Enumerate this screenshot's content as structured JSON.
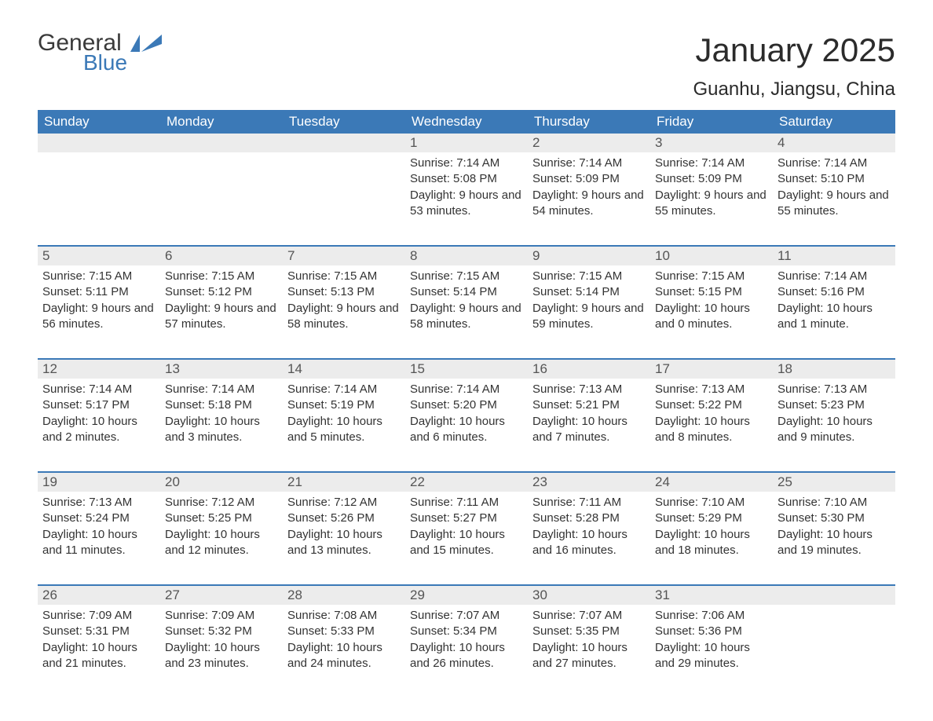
{
  "logo": {
    "word1": "General",
    "word2": "Blue",
    "icon_color": "#3b79b7",
    "text_color": "#3a3a3a"
  },
  "title": "January 2025",
  "subtitle": "Guanhu, Jiangsu, China",
  "colors": {
    "header_bg": "#3b79b7",
    "header_text": "#ffffff",
    "datebar_bg": "#ececec",
    "datebar_text": "#555555",
    "body_text": "#333333",
    "rule": "#3b79b7",
    "page_bg": "#ffffff"
  },
  "typography": {
    "title_fontsize": 42,
    "subtitle_fontsize": 24,
    "dayhead_fontsize": 17,
    "date_fontsize": 17,
    "body_fontsize": 15
  },
  "day_names": [
    "Sunday",
    "Monday",
    "Tuesday",
    "Wednesday",
    "Thursday",
    "Friday",
    "Saturday"
  ],
  "weeks": [
    [
      null,
      null,
      null,
      {
        "d": "1",
        "sr": "Sunrise: 7:14 AM",
        "ss": "Sunset: 5:08 PM",
        "dl": "Daylight: 9 hours and 53 minutes."
      },
      {
        "d": "2",
        "sr": "Sunrise: 7:14 AM",
        "ss": "Sunset: 5:09 PM",
        "dl": "Daylight: 9 hours and 54 minutes."
      },
      {
        "d": "3",
        "sr": "Sunrise: 7:14 AM",
        "ss": "Sunset: 5:09 PM",
        "dl": "Daylight: 9 hours and 55 minutes."
      },
      {
        "d": "4",
        "sr": "Sunrise: 7:14 AM",
        "ss": "Sunset: 5:10 PM",
        "dl": "Daylight: 9 hours and 55 minutes."
      }
    ],
    [
      {
        "d": "5",
        "sr": "Sunrise: 7:15 AM",
        "ss": "Sunset: 5:11 PM",
        "dl": "Daylight: 9 hours and 56 minutes."
      },
      {
        "d": "6",
        "sr": "Sunrise: 7:15 AM",
        "ss": "Sunset: 5:12 PM",
        "dl": "Daylight: 9 hours and 57 minutes."
      },
      {
        "d": "7",
        "sr": "Sunrise: 7:15 AM",
        "ss": "Sunset: 5:13 PM",
        "dl": "Daylight: 9 hours and 58 minutes."
      },
      {
        "d": "8",
        "sr": "Sunrise: 7:15 AM",
        "ss": "Sunset: 5:14 PM",
        "dl": "Daylight: 9 hours and 58 minutes."
      },
      {
        "d": "9",
        "sr": "Sunrise: 7:15 AM",
        "ss": "Sunset: 5:14 PM",
        "dl": "Daylight: 9 hours and 59 minutes."
      },
      {
        "d": "10",
        "sr": "Sunrise: 7:15 AM",
        "ss": "Sunset: 5:15 PM",
        "dl": "Daylight: 10 hours and 0 minutes."
      },
      {
        "d": "11",
        "sr": "Sunrise: 7:14 AM",
        "ss": "Sunset: 5:16 PM",
        "dl": "Daylight: 10 hours and 1 minute."
      }
    ],
    [
      {
        "d": "12",
        "sr": "Sunrise: 7:14 AM",
        "ss": "Sunset: 5:17 PM",
        "dl": "Daylight: 10 hours and 2 minutes."
      },
      {
        "d": "13",
        "sr": "Sunrise: 7:14 AM",
        "ss": "Sunset: 5:18 PM",
        "dl": "Daylight: 10 hours and 3 minutes."
      },
      {
        "d": "14",
        "sr": "Sunrise: 7:14 AM",
        "ss": "Sunset: 5:19 PM",
        "dl": "Daylight: 10 hours and 5 minutes."
      },
      {
        "d": "15",
        "sr": "Sunrise: 7:14 AM",
        "ss": "Sunset: 5:20 PM",
        "dl": "Daylight: 10 hours and 6 minutes."
      },
      {
        "d": "16",
        "sr": "Sunrise: 7:13 AM",
        "ss": "Sunset: 5:21 PM",
        "dl": "Daylight: 10 hours and 7 minutes."
      },
      {
        "d": "17",
        "sr": "Sunrise: 7:13 AM",
        "ss": "Sunset: 5:22 PM",
        "dl": "Daylight: 10 hours and 8 minutes."
      },
      {
        "d": "18",
        "sr": "Sunrise: 7:13 AM",
        "ss": "Sunset: 5:23 PM",
        "dl": "Daylight: 10 hours and 9 minutes."
      }
    ],
    [
      {
        "d": "19",
        "sr": "Sunrise: 7:13 AM",
        "ss": "Sunset: 5:24 PM",
        "dl": "Daylight: 10 hours and 11 minutes."
      },
      {
        "d": "20",
        "sr": "Sunrise: 7:12 AM",
        "ss": "Sunset: 5:25 PM",
        "dl": "Daylight: 10 hours and 12 minutes."
      },
      {
        "d": "21",
        "sr": "Sunrise: 7:12 AM",
        "ss": "Sunset: 5:26 PM",
        "dl": "Daylight: 10 hours and 13 minutes."
      },
      {
        "d": "22",
        "sr": "Sunrise: 7:11 AM",
        "ss": "Sunset: 5:27 PM",
        "dl": "Daylight: 10 hours and 15 minutes."
      },
      {
        "d": "23",
        "sr": "Sunrise: 7:11 AM",
        "ss": "Sunset: 5:28 PM",
        "dl": "Daylight: 10 hours and 16 minutes."
      },
      {
        "d": "24",
        "sr": "Sunrise: 7:10 AM",
        "ss": "Sunset: 5:29 PM",
        "dl": "Daylight: 10 hours and 18 minutes."
      },
      {
        "d": "25",
        "sr": "Sunrise: 7:10 AM",
        "ss": "Sunset: 5:30 PM",
        "dl": "Daylight: 10 hours and 19 minutes."
      }
    ],
    [
      {
        "d": "26",
        "sr": "Sunrise: 7:09 AM",
        "ss": "Sunset: 5:31 PM",
        "dl": "Daylight: 10 hours and 21 minutes."
      },
      {
        "d": "27",
        "sr": "Sunrise: 7:09 AM",
        "ss": "Sunset: 5:32 PM",
        "dl": "Daylight: 10 hours and 23 minutes."
      },
      {
        "d": "28",
        "sr": "Sunrise: 7:08 AM",
        "ss": "Sunset: 5:33 PM",
        "dl": "Daylight: 10 hours and 24 minutes."
      },
      {
        "d": "29",
        "sr": "Sunrise: 7:07 AM",
        "ss": "Sunset: 5:34 PM",
        "dl": "Daylight: 10 hours and 26 minutes."
      },
      {
        "d": "30",
        "sr": "Sunrise: 7:07 AM",
        "ss": "Sunset: 5:35 PM",
        "dl": "Daylight: 10 hours and 27 minutes."
      },
      {
        "d": "31",
        "sr": "Sunrise: 7:06 AM",
        "ss": "Sunset: 5:36 PM",
        "dl": "Daylight: 10 hours and 29 minutes."
      },
      null
    ]
  ]
}
